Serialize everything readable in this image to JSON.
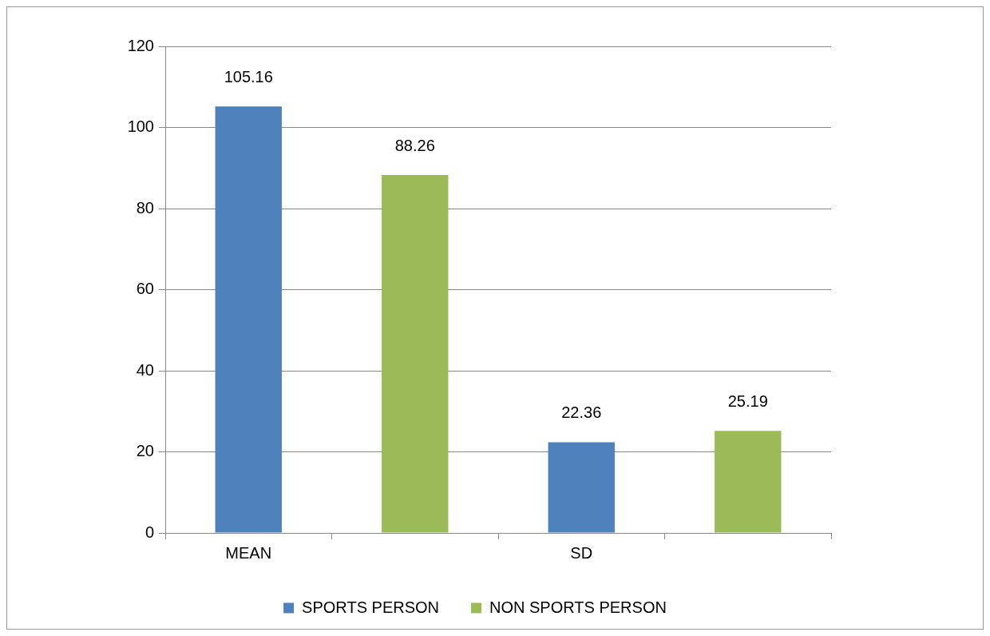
{
  "chart_data": {
    "type": "bar",
    "categories": [
      "MEAN",
      null,
      "SD",
      null
    ],
    "series": [
      {
        "name": "SPORTS PERSON",
        "color": "#4f81bd",
        "values": [
          105.16,
          null,
          22.36,
          null
        ]
      },
      {
        "name": "NON SPORTS PERSON",
        "color": "#9bbb59",
        "values": [
          null,
          88.26,
          null,
          25.19
        ]
      }
    ],
    "ylim": [
      0,
      120
    ],
    "yticks": [
      0,
      20,
      40,
      60,
      80,
      100,
      120
    ],
    "grid": "y",
    "legend": "bottom",
    "data_labels": true
  }
}
